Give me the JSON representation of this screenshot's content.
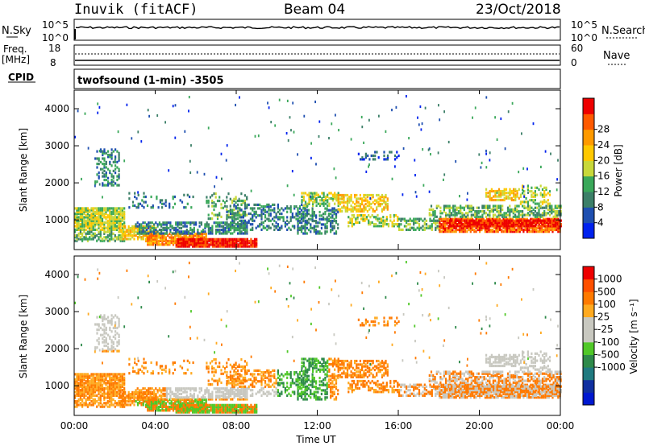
{
  "header": {
    "station": "Inuvik (fitACF)",
    "beam": "Beam 04",
    "date": "23/Oct/2018"
  },
  "top_panels": {
    "nsky": {
      "label": "N.Sky",
      "ticks": [
        "10^5",
        "10^0"
      ],
      "right_label": "N.Search",
      "right_ticks": [
        "10^5",
        "10^0"
      ]
    },
    "freq": {
      "label_line1": "Freq.",
      "label_line2": "[MHz]",
      "ticks": [
        "18",
        "8"
      ],
      "right_label": "Nave",
      "right_ticks": [
        "60",
        "0"
      ]
    },
    "cpid": {
      "label": "CPID",
      "text": "twofsound (1-min) -3505"
    }
  },
  "colors": {
    "power_scale": [
      "#0022ee",
      "#1f4fb0",
      "#3c7f68",
      "#3aa85a",
      "#c8d83a",
      "#ffc800",
      "#ff9a00",
      "#ff5a00",
      "#ee0000"
    ],
    "velocity_scale": [
      "#ee0000",
      "#ff5000",
      "#ff7a00",
      "#ffaa20",
      "#c8c8c0",
      "#c8c8c0",
      "#50c828",
      "#2e8a4a",
      "#207a80",
      "#1030a0",
      "#0018d0"
    ]
  },
  "chart_data": [
    {
      "type": "heatmap",
      "name": "power",
      "ylabel": "Slant Range [km]",
      "yticks": [
        "1000",
        "2000",
        "3000",
        "4000"
      ],
      "xticks": [
        "00:00",
        "04:00",
        "08:00",
        "12:00",
        "16:00",
        "20:00",
        "00:00"
      ],
      "xlabel": "",
      "colorbar_label": "Power [dB]",
      "colorbar_ticks": [
        "4",
        "8",
        "12",
        "16",
        "20",
        "24",
        "28"
      ],
      "ylim": [
        200,
        4500
      ],
      "xlim_hours": [
        0,
        24
      ]
    },
    {
      "type": "heatmap",
      "name": "velocity",
      "ylabel": "Slant Range [km]",
      "yticks": [
        "1000",
        "2000",
        "3000",
        "4000"
      ],
      "xticks": [
        "00:00",
        "04:00",
        "08:00",
        "12:00",
        "16:00",
        "20:00",
        "00:00"
      ],
      "xlabel": "Time UT",
      "colorbar_label": "Velocity [m s⁻¹]",
      "colorbar_ticks": [
        "1000",
        "500",
        "100",
        "25",
        "-25",
        "-100",
        "-500",
        "-1000"
      ],
      "ylim": [
        200,
        4500
      ],
      "xlim_hours": [
        0,
        24
      ]
    }
  ]
}
